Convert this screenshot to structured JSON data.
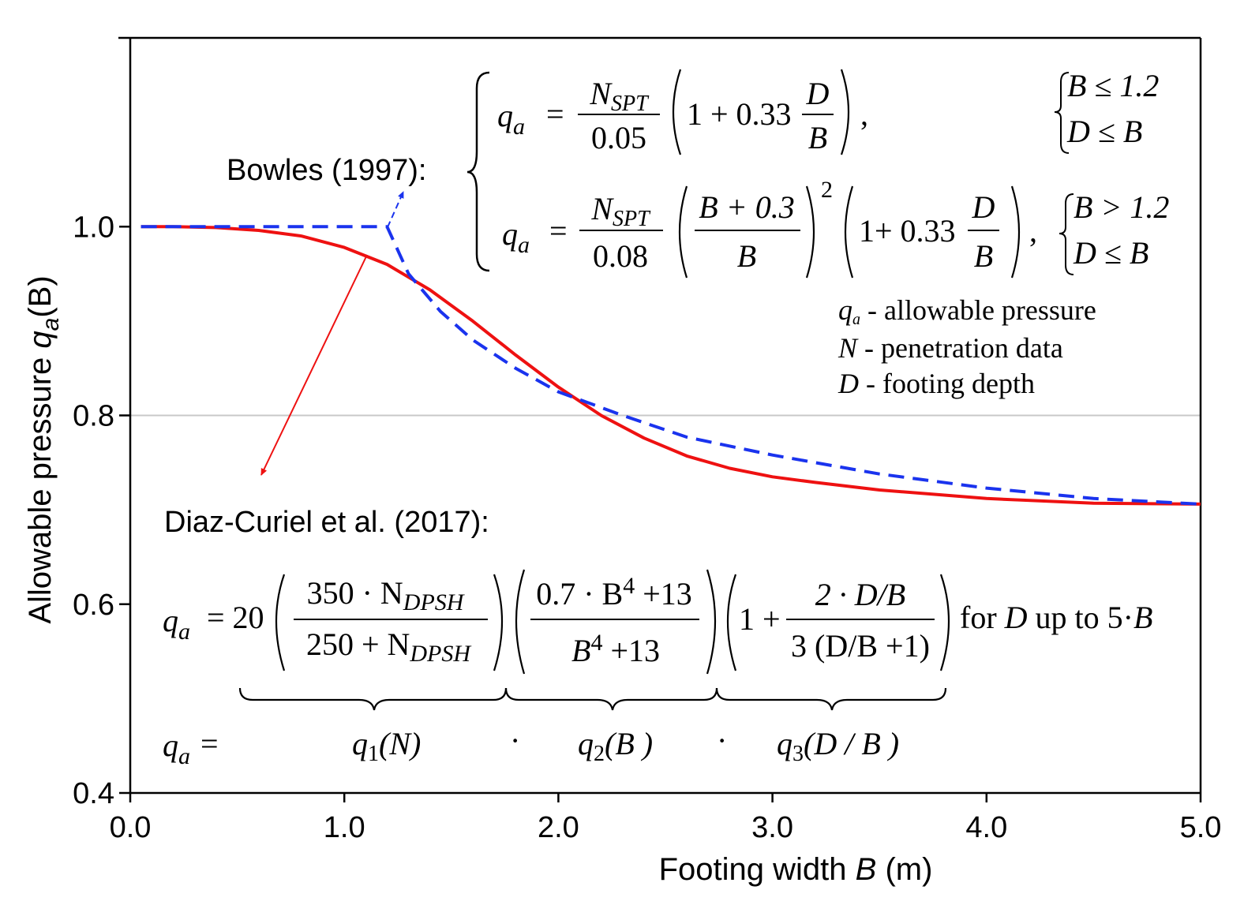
{
  "chart_data": {
    "type": "line",
    "xlabel": "Footing width B (m)",
    "xlabel_prefix": "Footing width",
    "xlabel_var": "B",
    "xlabel_unit": "(m)",
    "ylabel_prefix": "Allowable pressure",
    "ylabel_var": "q",
    "ylabel_sub": "a",
    "ylabel_arg": "(B)",
    "xlim": [
      0,
      5
    ],
    "ylim": [
      0.4,
      1.2
    ],
    "xticks": [
      0,
      1,
      2,
      3,
      4,
      5
    ],
    "xtick_labels": [
      "0.0",
      "1.0",
      "2.0",
      "3.0",
      "4.0",
      "5.0"
    ],
    "yticks": [
      0.4,
      0.6,
      0.8,
      1.0
    ],
    "ytick_labels": [
      "0.4",
      "0.6",
      "0.8",
      "1.0"
    ],
    "reference_line_y": 0.8,
    "series": [
      {
        "name": "Diaz-Curiel et al. (2017)",
        "color": "#ee1111",
        "style": "solid",
        "x": [
          0.05,
          0.2,
          0.4,
          0.6,
          0.8,
          1.0,
          1.2,
          1.4,
          1.6,
          1.8,
          2.0,
          2.2,
          2.4,
          2.6,
          2.8,
          3.0,
          3.2,
          3.5,
          4.0,
          4.5,
          5.0
        ],
        "y": [
          1.0,
          1.0,
          0.999,
          0.996,
          0.99,
          0.978,
          0.96,
          0.933,
          0.9,
          0.864,
          0.83,
          0.8,
          0.776,
          0.757,
          0.744,
          0.735,
          0.729,
          0.721,
          0.712,
          0.707,
          0.706
        ]
      },
      {
        "name": "Bowles (1997)",
        "color": "#1a33ee",
        "style": "dashed",
        "x": [
          0.05,
          1.2,
          1.3,
          1.45,
          1.6,
          1.8,
          2.0,
          2.3,
          2.6,
          3.0,
          3.5,
          4.0,
          4.5,
          5.0
        ],
        "y": [
          1.0,
          1.0,
          0.95,
          0.91,
          0.88,
          0.85,
          0.825,
          0.8,
          0.777,
          0.758,
          0.738,
          0.723,
          0.712,
          0.706
        ]
      }
    ]
  },
  "annotations": {
    "bowles": {
      "label": "Bowles (1997):",
      "eq1": {
        "q": "q",
        "sub": "a",
        "eq": "=",
        "num": "N",
        "num_sub": "SPT",
        "den": "0.05",
        "factor_lead": "1 + 0.33",
        "factor_num": "D",
        "factor_den": "B",
        "trail": ",",
        "cond1": "B ≤ 1.2",
        "cond2": "D ≤ B"
      },
      "eq2": {
        "q": "q",
        "sub": "a",
        "eq": "=",
        "num": "N",
        "num_sub": "SPT",
        "den": "0.08",
        "frac_num": "B + 0.3",
        "frac_den": "B",
        "power": "2",
        "factor_lead": "1+ 0.33",
        "factor_num": "D",
        "factor_den": "B",
        "trail": ",",
        "cond1": "B > 1.2",
        "cond2": "D ≤ B"
      }
    },
    "legend": {
      "l1_sym": "q",
      "l1_sub": "a",
      "l1_text": " - allowable pressure",
      "l2_sym": "N",
      "l2_text": "  - penetration data",
      "l3_sym": "D",
      "l3_text": "  - footing depth"
    },
    "diaz": {
      "label": "Diaz-Curiel et al. (2017):",
      "q": "q",
      "sub": "a",
      "eq_coef": "= 20",
      "f1_num_a": "350 · N",
      "f1_num_sub": "DPSH",
      "f1_den_a": "250 + N",
      "f1_den_sub": "DPSH",
      "f2_num_a": "0.7 · B",
      "f2_num_pow": "4",
      "f2_num_b": " +13",
      "f2_den_a": "B",
      "f2_den_pow": "4",
      "f2_den_b": " +13",
      "f3_lead": "1 +",
      "f3_num": "2 · D/B",
      "f3_den": "3 (D/B +1)",
      "cond_a": "for ",
      "cond_D": "D",
      "cond_b": " up to 5·",
      "cond_B": "B",
      "bottom_q": "q",
      "bottom_sub": "a",
      "bottom_eq": "=",
      "q1": "q",
      "q1_sub": "1",
      "q1_arg": "(N)",
      "q2": "q",
      "q2_sub": "2",
      "q2_arg": "(B )",
      "q3": "q",
      "q3_sub": "3",
      "q3_arg": "(D / B )",
      "dot": "·"
    }
  }
}
